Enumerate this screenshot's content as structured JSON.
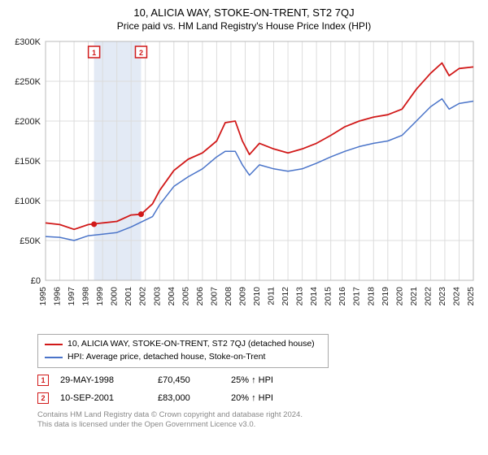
{
  "title": "10, ALICIA WAY, STOKE-ON-TRENT, ST2 7QJ",
  "subtitle": "Price paid vs. HM Land Registry's House Price Index (HPI)",
  "chart": {
    "type": "line",
    "x_years": [
      1995,
      1996,
      1997,
      1998,
      1999,
      2000,
      2001,
      2002,
      2003,
      2004,
      2005,
      2006,
      2007,
      2008,
      2009,
      2010,
      2011,
      2012,
      2013,
      2014,
      2015,
      2016,
      2017,
      2018,
      2019,
      2020,
      2021,
      2022,
      2023,
      2024,
      2025
    ],
    "y_ticks": [
      0,
      50000,
      100000,
      150000,
      200000,
      250000,
      300000
    ],
    "y_labels": [
      "£0",
      "£50K",
      "£100K",
      "£150K",
      "£200K",
      "£250K",
      "£300K"
    ],
    "ylim": [
      0,
      300000
    ],
    "xlim": [
      1995,
      2025
    ],
    "background_color": "#ffffff",
    "grid_color": "#dcdcdc",
    "series": [
      {
        "name": "property",
        "label": "10, ALICIA WAY, STOKE-ON-TRENT, ST2 7QJ (detached house)",
        "color": "#d11919",
        "width": 1.8,
        "data": [
          [
            1995,
            72000
          ],
          [
            1996,
            70000
          ],
          [
            1997,
            64000
          ],
          [
            1998,
            70000
          ],
          [
            1999,
            72000
          ],
          [
            2000,
            74000
          ],
          [
            2001,
            82000
          ],
          [
            2001.7,
            83000
          ],
          [
            2002.5,
            96000
          ],
          [
            2003,
            113000
          ],
          [
            2004,
            138000
          ],
          [
            2005,
            152000
          ],
          [
            2006,
            160000
          ],
          [
            2007,
            175000
          ],
          [
            2007.6,
            198000
          ],
          [
            2008.3,
            200000
          ],
          [
            2008.8,
            175000
          ],
          [
            2009.3,
            158000
          ],
          [
            2010,
            172000
          ],
          [
            2011,
            165000
          ],
          [
            2012,
            160000
          ],
          [
            2013,
            165000
          ],
          [
            2014,
            172000
          ],
          [
            2015,
            182000
          ],
          [
            2016,
            193000
          ],
          [
            2017,
            200000
          ],
          [
            2018,
            205000
          ],
          [
            2019,
            208000
          ],
          [
            2020,
            215000
          ],
          [
            2021,
            240000
          ],
          [
            2022,
            260000
          ],
          [
            2022.8,
            273000
          ],
          [
            2023.3,
            257000
          ],
          [
            2024,
            266000
          ],
          [
            2025,
            268000
          ]
        ]
      },
      {
        "name": "hpi",
        "label": "HPI: Average price, detached house, Stoke-on-Trent",
        "color": "#4a74c9",
        "width": 1.5,
        "data": [
          [
            1995,
            55000
          ],
          [
            1996,
            54000
          ],
          [
            1997,
            50000
          ],
          [
            1998,
            56000
          ],
          [
            1999,
            58000
          ],
          [
            2000,
            60000
          ],
          [
            2001,
            67000
          ],
          [
            2002.5,
            80000
          ],
          [
            2003,
            95000
          ],
          [
            2004,
            118000
          ],
          [
            2005,
            130000
          ],
          [
            2006,
            140000
          ],
          [
            2007,
            155000
          ],
          [
            2007.6,
            162000
          ],
          [
            2008.3,
            162000
          ],
          [
            2008.8,
            145000
          ],
          [
            2009.3,
            132000
          ],
          [
            2010,
            145000
          ],
          [
            2011,
            140000
          ],
          [
            2012,
            137000
          ],
          [
            2013,
            140000
          ],
          [
            2014,
            147000
          ],
          [
            2015,
            155000
          ],
          [
            2016,
            162000
          ],
          [
            2017,
            168000
          ],
          [
            2018,
            172000
          ],
          [
            2019,
            175000
          ],
          [
            2020,
            182000
          ],
          [
            2021,
            200000
          ],
          [
            2022,
            218000
          ],
          [
            2022.8,
            228000
          ],
          [
            2023.3,
            215000
          ],
          [
            2024,
            222000
          ],
          [
            2025,
            225000
          ]
        ]
      }
    ],
    "markers": [
      {
        "n": "1",
        "year": 1998.4,
        "price": 70450,
        "color": "#d11919"
      },
      {
        "n": "2",
        "year": 2001.7,
        "price": 83000,
        "color": "#d11919"
      }
    ],
    "shade_band": {
      "from": 1998.4,
      "to": 2001.7,
      "color": "#e3eaf5"
    }
  },
  "legend": {
    "prop": "10, ALICIA WAY, STOKE-ON-TRENT, ST2 7QJ (detached house)",
    "hpi": "HPI: Average price, detached house, Stoke-on-Trent"
  },
  "sales": [
    {
      "n": "1",
      "date": "29-MAY-1998",
      "price": "£70,450",
      "delta": "25% ↑ HPI",
      "border": "#d11919",
      "text": "#d11919"
    },
    {
      "n": "2",
      "date": "10-SEP-2001",
      "price": "£83,000",
      "delta": "20% ↑ HPI",
      "border": "#d11919",
      "text": "#d11919"
    }
  ],
  "footer": {
    "l1": "Contains HM Land Registry data © Crown copyright and database right 2024.",
    "l2": "This data is licensed under the Open Government Licence v3.0."
  }
}
